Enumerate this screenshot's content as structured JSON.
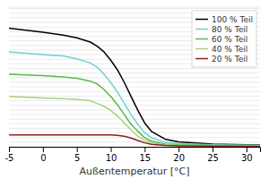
{
  "chart_data": {
    "type": "line",
    "xlabel": "Außentemperatur [°C]",
    "xlim": [
      -5,
      32
    ],
    "xticks": [
      -5,
      0,
      5,
      10,
      15,
      20,
      25,
      30
    ],
    "ylim": [
      0,
      10
    ],
    "yticks": [
      0,
      0.33,
      0.66,
      0.99,
      1.32,
      1.65,
      1.98,
      2.31,
      2.64,
      2.97,
      3.3,
      3.63,
      3.96,
      4.29,
      4.62,
      4.95,
      5.28,
      5.61,
      5.94,
      6.27,
      6.6,
      6.93,
      7.26,
      7.59,
      7.92,
      8.25,
      8.58,
      8.91,
      9.24,
      9.57,
      9.9,
      10
    ],
    "tick_labels": "x",
    "grid": true,
    "legend": "upper right",
    "series": [
      {
        "name": "100 % Teil",
        "color": "#000000",
        "x": [
          -5,
          0,
          3,
          5,
          7,
          8,
          9,
          10,
          11,
          12,
          13,
          14,
          15,
          16,
          18,
          20,
          25,
          30,
          32
        ],
        "values": [
          8.5,
          8.2,
          8.0,
          7.8,
          7.5,
          7.2,
          6.8,
          6.2,
          5.5,
          4.6,
          3.6,
          2.6,
          1.7,
          1.1,
          0.55,
          0.35,
          0.2,
          0.15,
          0.15
        ]
      },
      {
        "name": "80 % Teil",
        "color": "#70d0d0",
        "x": [
          -5,
          0,
          3,
          5,
          7,
          8,
          9,
          10,
          11,
          12,
          13,
          14,
          15,
          16,
          18,
          20,
          25,
          30,
          32
        ],
        "values": [
          6.8,
          6.6,
          6.5,
          6.3,
          6.0,
          5.7,
          5.2,
          4.6,
          3.9,
          3.1,
          2.3,
          1.6,
          1.0,
          0.65,
          0.32,
          0.22,
          0.15,
          0.12,
          0.12
        ]
      },
      {
        "name": "60 % Teil",
        "color": "#55bb44",
        "x": [
          -5,
          0,
          3,
          5,
          7,
          8,
          9,
          10,
          11,
          12,
          13,
          14,
          15,
          16,
          18,
          20,
          25,
          30,
          32
        ],
        "values": [
          5.2,
          5.1,
          5.0,
          4.9,
          4.7,
          4.5,
          4.1,
          3.6,
          3.0,
          2.3,
          1.6,
          1.1,
          0.65,
          0.4,
          0.2,
          0.14,
          0.1,
          0.09,
          0.09
        ]
      },
      {
        "name": "40 % Teil",
        "color": "#aad080",
        "x": [
          -5,
          0,
          3,
          5,
          7,
          8,
          9,
          10,
          11,
          12,
          13,
          14,
          15,
          16,
          18,
          20,
          25,
          30,
          32
        ],
        "values": [
          3.6,
          3.5,
          3.45,
          3.4,
          3.3,
          3.1,
          2.9,
          2.6,
          2.2,
          1.7,
          1.2,
          0.75,
          0.45,
          0.28,
          0.14,
          0.1,
          0.07,
          0.07,
          0.07
        ]
      },
      {
        "name": "20 % Teil",
        "color": "#882222",
        "x": [
          -5,
          0,
          5,
          10,
          11,
          12,
          13,
          14,
          15,
          16,
          18,
          20,
          25,
          30,
          32
        ],
        "values": [
          0.85,
          0.85,
          0.85,
          0.85,
          0.82,
          0.75,
          0.62,
          0.45,
          0.28,
          0.18,
          0.09,
          0.07,
          0.05,
          0.04,
          0.04
        ]
      }
    ]
  }
}
